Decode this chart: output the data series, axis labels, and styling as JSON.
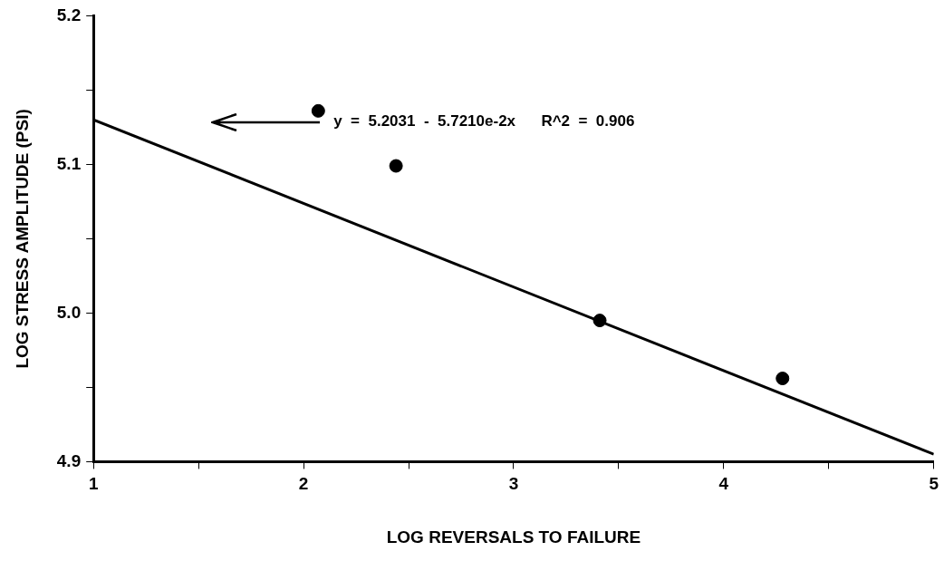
{
  "chart_data": {
    "type": "scatter",
    "xlabel": "LOG REVERSALS TO FAILURE",
    "ylabel": "LOG STRESS AMPLITUDE (PSI)",
    "xlim": [
      1,
      5
    ],
    "ylim": [
      4.9,
      5.2
    ],
    "xticks": [
      1,
      {
        "value": 1.5,
        "label": null
      },
      2,
      {
        "value": 2.5,
        "label": null
      },
      3,
      {
        "value": 3.5,
        "label": null
      },
      4,
      {
        "value": 4.5,
        "label": null
      },
      5
    ],
    "yticks": [
      4.9,
      {
        "value": 4.95,
        "label": null
      },
      {
        "value": 5.0,
        "label": "5.0"
      },
      {
        "value": 5.05,
        "label": null
      },
      5.1,
      {
        "value": 5.15,
        "label": null
      },
      5.2
    ],
    "grid": false,
    "legend": false,
    "marker": "circle",
    "series": [
      {
        "color": "#000000",
        "x": [
          2.07,
          2.44,
          3.41,
          4.28
        ],
        "values": [
          5.136,
          5.099,
          4.995,
          4.956
        ]
      },
      {
        "type": "line",
        "color": "#000000",
        "x": [
          1,
          5
        ],
        "values": [
          5.13,
          4.905
        ],
        "marker": "none",
        "line_style": "solid"
      }
    ],
    "annotations": [
      "y  =  5.2031  -  5.7210e-2x      R^2  =  0.906"
    ]
  }
}
